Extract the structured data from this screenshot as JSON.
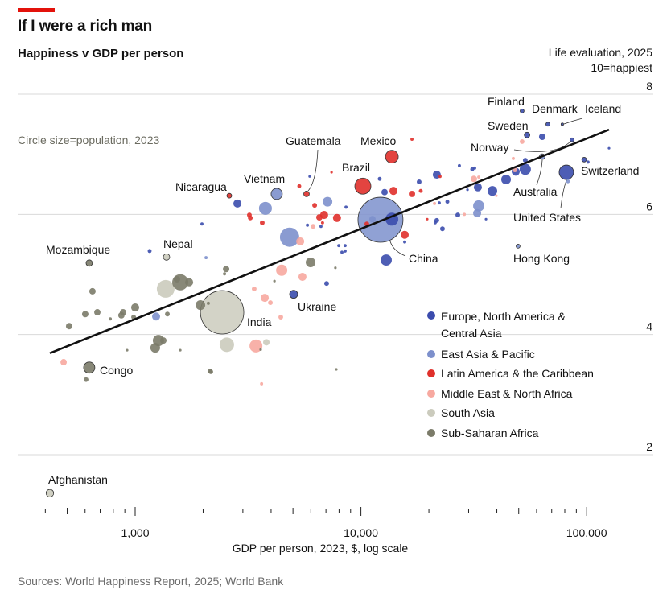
{
  "header": {
    "title": "If I were a rich man",
    "subtitle": "Happiness v GDP per person",
    "y_axis_title": "Life evaluation, 2025",
    "y_axis_note": "10=happiest",
    "size_note": "Circle size=population, 2023"
  },
  "footer": {
    "source": "Sources: World Happiness Report, 2025; World Bank"
  },
  "legend": [
    {
      "code": "E",
      "label": "Europe, North America & Central Asia",
      "color": "#3b4cad"
    },
    {
      "code": "P",
      "label": "East Asia & Pacific",
      "color": "#7d90cc"
    },
    {
      "code": "L",
      "label": "Latin America & the Caribbean",
      "color": "#e0302b"
    },
    {
      "code": "M",
      "label": "Middle East & North Africa",
      "color": "#f7a9a0"
    },
    {
      "code": "S",
      "label": "South Asia",
      "color": "#cbcbbd"
    },
    {
      "code": "A",
      "label": "Sub-Saharan Africa",
      "color": "#7b7b69"
    }
  ],
  "chart_data": {
    "type": "scatter",
    "title": "Happiness v GDP per person",
    "xlabel": "GDP per person, 2023, $, log scale",
    "ylabel": "Life evaluation, 2025",
    "x_scale": "log",
    "xlim": [
      400,
      130000
    ],
    "ylim": [
      1.2,
      8.2
    ],
    "xticks": [
      1000,
      10000,
      100000
    ],
    "xtick_labels": [
      "1,000",
      "10,000",
      "100,000"
    ],
    "yticks": [
      2,
      4,
      6,
      8
    ],
    "ytick_labels": [
      "2",
      "4",
      "6",
      "8"
    ],
    "grid": "horizontal",
    "legend_position": "bottom-right",
    "size_encoding": "population, 2023 (millions)",
    "trendline": {
      "x": [
        419,
        125600
      ],
      "y": [
        3.69,
        7.41
      ]
    },
    "labeled": [
      {
        "name": "Afghanistan",
        "gdp": 419,
        "life": 1.36,
        "region": "S",
        "pop": 41
      },
      {
        "name": "Congo",
        "gdp": 626,
        "life": 3.45,
        "region": "A",
        "pop": 89
      },
      {
        "name": "Mozambique",
        "gdp": 626,
        "life": 5.19,
        "region": "A",
        "pop": 29
      },
      {
        "name": "Nepal",
        "gdp": 1377,
        "life": 5.29,
        "region": "S",
        "pop": 29
      },
      {
        "name": "India",
        "gdp": 2427,
        "life": 4.37,
        "region": "S",
        "pop": 1330
      },
      {
        "name": "Nicaragua",
        "gdp": 2612,
        "life": 6.31,
        "region": "L",
        "pop": 16
      },
      {
        "name": "Vietnam",
        "gdp": 4236,
        "life": 6.34,
        "region": "P",
        "pop": 89
      },
      {
        "name": "Guatemala",
        "gdp": 5741,
        "life": 6.34,
        "region": "L",
        "pop": 22
      },
      {
        "name": "Ukraine",
        "gdp": 5035,
        "life": 4.67,
        "region": "E",
        "pop": 46
      },
      {
        "name": "Brazil",
        "gdp": 10200,
        "life": 6.47,
        "region": "L",
        "pop": 183
      },
      {
        "name": "Mexico",
        "gdp": 13710,
        "life": 6.96,
        "region": "L",
        "pop": 117
      },
      {
        "name": "China",
        "gdp": 12210,
        "life": 5.91,
        "region": "P",
        "pop": 1430
      },
      {
        "name": "Finland",
        "gdp": 51760,
        "life": 7.72,
        "region": "E",
        "pop": 11
      },
      {
        "name": "Denmark",
        "gdp": 67300,
        "life": 7.5,
        "region": "E",
        "pop": 11
      },
      {
        "name": "Iceland",
        "gdp": 78000,
        "life": 7.5,
        "region": "E",
        "pop": 4
      },
      {
        "name": "Sweden",
        "gdp": 54450,
        "life": 7.32,
        "region": "E",
        "pop": 22
      },
      {
        "name": "Norway",
        "gdp": 86100,
        "life": 7.24,
        "region": "E",
        "pop": 11
      },
      {
        "name": "Australia",
        "gdp": 63530,
        "life": 6.96,
        "region": "P",
        "pop": 22
      },
      {
        "name": "Switzerland",
        "gdp": 97500,
        "life": 6.91,
        "region": "E",
        "pop": 16
      },
      {
        "name": "United States",
        "gdp": 81280,
        "life": 6.7,
        "region": "E",
        "pop": 148
      },
      {
        "name": "Hong Kong",
        "gdp": 49680,
        "life": 5.47,
        "region": "P",
        "pop": 11
      }
    ],
    "points": [
      {
        "gdp": 1159,
        "life": 5.39,
        "region": "E",
        "pop": 11
      },
      {
        "gdp": 2060,
        "life": 5.28,
        "region": "P",
        "pop": 7
      },
      {
        "gdp": 2529,
        "life": 5.09,
        "region": "A",
        "pop": 29
      },
      {
        "gdp": 2488,
        "life": 5.01,
        "region": "A",
        "pop": 7
      },
      {
        "gdp": 1584,
        "life": 4.87,
        "region": "A",
        "pop": 183
      },
      {
        "gdp": 1734,
        "life": 4.87,
        "region": "A",
        "pop": 46
      },
      {
        "gdp": 1532,
        "life": 4.92,
        "region": "A",
        "pop": 29
      },
      {
        "gdp": 1365,
        "life": 4.76,
        "region": "S",
        "pop": 221
      },
      {
        "gdp": 647,
        "life": 4.72,
        "region": "A",
        "pop": 29
      },
      {
        "gdp": 1945,
        "life": 4.49,
        "region": "A",
        "pop": 66
      },
      {
        "gdp": 2109,
        "life": 4.52,
        "region": "A",
        "pop": 7
      },
      {
        "gdp": 1000,
        "life": 4.45,
        "region": "A",
        "pop": 46
      },
      {
        "gdp": 601,
        "life": 4.34,
        "region": "A",
        "pop": 29
      },
      {
        "gdp": 680,
        "life": 4.37,
        "region": "A",
        "pop": 29
      },
      {
        "gdp": 776,
        "life": 4.26,
        "region": "A",
        "pop": 7
      },
      {
        "gdp": 884,
        "life": 4.37,
        "region": "A",
        "pop": 29
      },
      {
        "gdp": 869,
        "life": 4.32,
        "region": "A",
        "pop": 29
      },
      {
        "gdp": 984,
        "life": 4.29,
        "region": "A",
        "pop": 16
      },
      {
        "gdp": 1389,
        "life": 4.34,
        "region": "A",
        "pop": 16
      },
      {
        "gdp": 1238,
        "life": 4.3,
        "region": "P",
        "pop": 46
      },
      {
        "gdp": 510,
        "life": 4.14,
        "region": "A",
        "pop": 29
      },
      {
        "gdp": 1268,
        "life": 3.9,
        "region": "A",
        "pop": 89
      },
      {
        "gdp": 1227,
        "life": 3.78,
        "region": "A",
        "pop": 66
      },
      {
        "gdp": 1333,
        "life": 3.9,
        "region": "A",
        "pop": 29
      },
      {
        "gdp": 2547,
        "life": 3.83,
        "region": "S",
        "pop": 148
      },
      {
        "gdp": 921,
        "life": 3.74,
        "region": "A",
        "pop": 4
      },
      {
        "gdp": 1584,
        "life": 3.74,
        "region": "A",
        "pop": 4
      },
      {
        "gdp": 482,
        "life": 3.54,
        "region": "M",
        "pop": 29
      },
      {
        "gdp": 606,
        "life": 3.25,
        "region": "A",
        "pop": 16
      },
      {
        "gdp": 2144,
        "life": 3.39,
        "region": "A",
        "pop": 16
      },
      {
        "gdp": 3236,
        "life": 5.94,
        "region": "L",
        "pop": 16
      },
      {
        "gdp": 3656,
        "life": 5.86,
        "region": "L",
        "pop": 16
      },
      {
        "gdp": 3367,
        "life": 4.76,
        "region": "M",
        "pop": 16
      },
      {
        "gdp": 3750,
        "life": 4.61,
        "region": "M",
        "pop": 46
      },
      {
        "gdp": 3972,
        "life": 4.53,
        "region": "M",
        "pop": 16
      },
      {
        "gdp": 3428,
        "life": 3.81,
        "region": "M",
        "pop": 117
      },
      {
        "gdp": 3597,
        "life": 3.75,
        "region": "A",
        "pop": 4
      },
      {
        "gdp": 3811,
        "life": 3.87,
        "region": "S",
        "pop": 29
      },
      {
        "gdp": 2163,
        "life": 3.38,
        "region": "A",
        "pop": 16
      },
      {
        "gdp": 2837,
        "life": 6.18,
        "region": "E",
        "pop": 46
      },
      {
        "gdp": 3776,
        "life": 6.1,
        "region": "P",
        "pop": 117
      },
      {
        "gdp": 5333,
        "life": 6.47,
        "region": "L",
        "pop": 11
      },
      {
        "gdp": 5929,
        "life": 6.63,
        "region": "E",
        "pop": 4
      },
      {
        "gdp": 7413,
        "life": 6.7,
        "region": "L",
        "pop": 4
      },
      {
        "gdp": 7112,
        "life": 6.21,
        "region": "P",
        "pop": 66
      },
      {
        "gdp": 6237,
        "life": 6.15,
        "region": "L",
        "pop": 16
      },
      {
        "gdp": 8590,
        "life": 6.12,
        "region": "E",
        "pop": 7
      },
      {
        "gdp": 3206,
        "life": 5.99,
        "region": "L",
        "pop": 16
      },
      {
        "gdp": 6871,
        "life": 5.99,
        "region": "L",
        "pop": 46
      },
      {
        "gdp": 6546,
        "life": 5.95,
        "region": "L",
        "pop": 29
      },
      {
        "gdp": 7834,
        "life": 5.94,
        "region": "L",
        "pop": 46
      },
      {
        "gdp": 6761,
        "life": 5.86,
        "region": "L",
        "pop": 7
      },
      {
        "gdp": 5794,
        "life": 5.82,
        "region": "E",
        "pop": 7
      },
      {
        "gdp": 6138,
        "life": 5.8,
        "region": "M",
        "pop": 16
      },
      {
        "gdp": 6653,
        "life": 5.8,
        "region": "E",
        "pop": 7
      },
      {
        "gdp": 12110,
        "life": 6.59,
        "region": "E",
        "pop": 11
      },
      {
        "gdp": 12730,
        "life": 6.37,
        "region": "E",
        "pop": 29
      },
      {
        "gdp": 10620,
        "life": 5.84,
        "region": "L",
        "pop": 16
      },
      {
        "gdp": 4831,
        "life": 5.62,
        "region": "P",
        "pop": 263
      },
      {
        "gdp": 5383,
        "life": 5.55,
        "region": "M",
        "pop": 46
      },
      {
        "gdp": 7980,
        "life": 5.48,
        "region": "E",
        "pop": 7
      },
      {
        "gdp": 8511,
        "life": 5.48,
        "region": "E",
        "pop": 7
      },
      {
        "gdp": 8241,
        "life": 5.37,
        "region": "E",
        "pop": 7
      },
      {
        "gdp": 8511,
        "life": 5.39,
        "region": "E",
        "pop": 7
      },
      {
        "gdp": 5984,
        "life": 5.2,
        "region": "A",
        "pop": 66
      },
      {
        "gdp": 4457,
        "life": 5.07,
        "region": "M",
        "pop": 89
      },
      {
        "gdp": 5508,
        "life": 4.96,
        "region": "M",
        "pop": 46
      },
      {
        "gdp": 7709,
        "life": 5.11,
        "region": "A",
        "pop": 4
      },
      {
        "gdp": 12940,
        "life": 5.24,
        "region": "E",
        "pop": 89
      },
      {
        "gdp": 7047,
        "life": 4.85,
        "region": "E",
        "pop": 16
      },
      {
        "gdp": 4140,
        "life": 4.89,
        "region": "A",
        "pop": 4
      },
      {
        "gdp": 4416,
        "life": 4.29,
        "region": "M",
        "pop": 16
      },
      {
        "gdp": 7780,
        "life": 3.42,
        "region": "A",
        "pop": 4
      },
      {
        "gdp": 3631,
        "life": 3.18,
        "region": "M",
        "pop": 7
      },
      {
        "gdp": 16830,
        "life": 7.25,
        "region": "L",
        "pop": 7
      },
      {
        "gdp": 13930,
        "life": 6.39,
        "region": "L",
        "pop": 46
      },
      {
        "gdp": 16830,
        "life": 6.34,
        "region": "L",
        "pop": 29
      },
      {
        "gdp": 18410,
        "life": 6.39,
        "region": "L",
        "pop": 11
      },
      {
        "gdp": 18110,
        "life": 6.54,
        "region": "E",
        "pop": 16
      },
      {
        "gdp": 21680,
        "life": 6.66,
        "region": "E",
        "pop": 46
      },
      {
        "gdp": 22420,
        "life": 6.63,
        "region": "L",
        "pop": 7
      },
      {
        "gdp": 27290,
        "life": 6.81,
        "region": "E",
        "pop": 7
      },
      {
        "gdp": 31120,
        "life": 6.75,
        "region": "E",
        "pop": 11
      },
      {
        "gdp": 31900,
        "life": 6.77,
        "region": "E",
        "pop": 7
      },
      {
        "gdp": 31650,
        "life": 6.59,
        "region": "M",
        "pop": 29
      },
      {
        "gdp": 33260,
        "life": 6.62,
        "region": "M",
        "pop": 7
      },
      {
        "gdp": 32960,
        "life": 6.45,
        "region": "E",
        "pop": 46
      },
      {
        "gdp": 29650,
        "life": 6.41,
        "region": "E",
        "pop": 4
      },
      {
        "gdp": 38220,
        "life": 6.39,
        "region": "E",
        "pop": 66
      },
      {
        "gdp": 39810,
        "life": 6.31,
        "region": "M",
        "pop": 4
      },
      {
        "gdp": 43950,
        "life": 6.58,
        "region": "E",
        "pop": 66
      },
      {
        "gdp": 47300,
        "life": 6.93,
        "region": "M",
        "pop": 7
      },
      {
        "gdp": 53460,
        "life": 6.9,
        "region": "E",
        "pop": 16
      },
      {
        "gdp": 48490,
        "life": 6.71,
        "region": "E",
        "pop": 46
      },
      {
        "gdp": 53460,
        "life": 6.75,
        "region": "E",
        "pop": 89
      },
      {
        "gdp": 48080,
        "life": 6.74,
        "region": "M",
        "pop": 16
      },
      {
        "gdp": 21180,
        "life": 6.18,
        "region": "M",
        "pop": 7
      },
      {
        "gdp": 22230,
        "life": 6.19,
        "region": "E",
        "pop": 7
      },
      {
        "gdp": 24150,
        "life": 6.21,
        "region": "E",
        "pop": 11
      },
      {
        "gdp": 33260,
        "life": 6.14,
        "region": "P",
        "pop": 89
      },
      {
        "gdp": 32720,
        "life": 6.02,
        "region": "P",
        "pop": 46
      },
      {
        "gdp": 26860,
        "life": 5.99,
        "region": "E",
        "pop": 16
      },
      {
        "gdp": 28710,
        "life": 6.0,
        "region": "M",
        "pop": 7
      },
      {
        "gdp": 35810,
        "life": 5.92,
        "region": "E",
        "pop": 4
      },
      {
        "gdp": 19660,
        "life": 5.92,
        "region": "L",
        "pop": 4
      },
      {
        "gdp": 21680,
        "life": 5.9,
        "region": "E",
        "pop": 16
      },
      {
        "gdp": 21330,
        "life": 5.86,
        "region": "E",
        "pop": 7
      },
      {
        "gdp": 22970,
        "life": 5.76,
        "region": "E",
        "pop": 16
      },
      {
        "gdp": 15630,
        "life": 5.66,
        "region": "L",
        "pop": 46
      },
      {
        "gdp": 15630,
        "life": 5.54,
        "region": "E",
        "pop": 7
      },
      {
        "gdp": 13710,
        "life": 5.92,
        "region": "E",
        "pop": 117
      },
      {
        "gdp": 11250,
        "life": 5.92,
        "region": "P",
        "pop": 29
      },
      {
        "gdp": 63530,
        "life": 7.29,
        "region": "E",
        "pop": 29
      },
      {
        "gdp": 51760,
        "life": 7.21,
        "region": "M",
        "pop": 16
      },
      {
        "gdp": 125600,
        "life": 7.1,
        "region": "E",
        "pop": 4
      },
      {
        "gdp": 101400,
        "life": 6.87,
        "region": "E",
        "pop": 7
      },
      {
        "gdp": 82600,
        "life": 6.55,
        "region": "P",
        "pop": 11
      },
      {
        "gdp": 1976,
        "life": 5.84,
        "region": "E",
        "pop": 7
      }
    ]
  }
}
